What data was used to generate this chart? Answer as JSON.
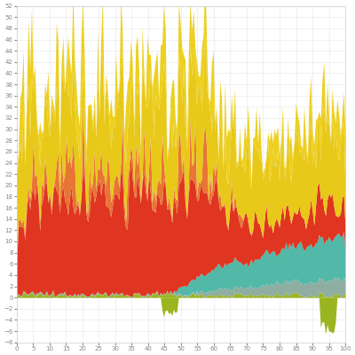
{
  "n_points": 200,
  "x_min": 0,
  "x_max": 100,
  "ylim": [
    -8,
    52
  ],
  "ytick_step": 2,
  "xtick_step": 5,
  "colors": {
    "olive_green": "#9BB520",
    "dark_teal": "#1A5C50",
    "gray_green": "#8FADA0",
    "teal_cyan": "#52B8A8",
    "red": "#E03520",
    "orange": "#E87535",
    "yellow_base": "#E8C818",
    "yellow_spike": "#EDD020"
  },
  "background_color": "#ffffff",
  "grid_color": "#e0e0e0",
  "spine_color": "#cccccc",
  "tick_color": "#888888",
  "alpha": 1.0
}
